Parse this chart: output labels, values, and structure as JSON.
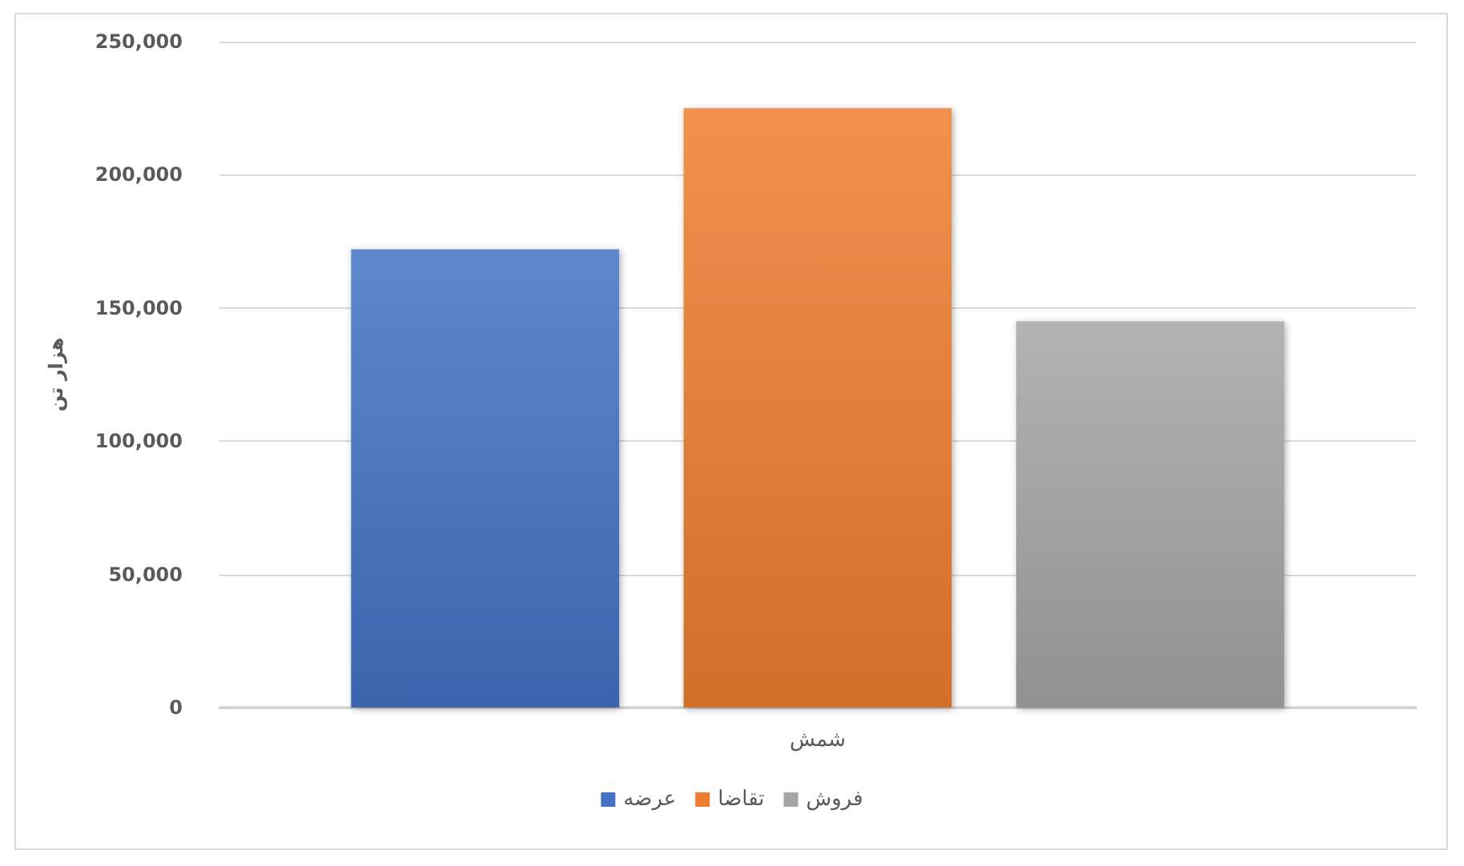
{
  "chart_data": {
    "type": "bar",
    "ylabel": "هزار تن",
    "categories": [
      "شمش"
    ],
    "series": [
      {
        "name": "عرضه",
        "color": "#4472c4",
        "values": [
          172000
        ]
      },
      {
        "name": "تقاضا",
        "color": "#ed7d31",
        "values": [
          225000
        ]
      },
      {
        "name": "فروش",
        "color": "#a5a5a5",
        "values": [
          145000
        ]
      }
    ],
    "ylim": [
      0,
      250000
    ],
    "yticks": [
      0,
      {
        "value": 50000,
        "label": "50,000"
      },
      {
        "value": 100000,
        "label": "100,000"
      },
      {
        "value": 150000,
        "label": "150,000"
      },
      {
        "value": 200000,
        "label": "200,000"
      },
      {
        "value": 250000,
        "label": "250,000"
      }
    ],
    "grid": "y",
    "legend": "bottom"
  }
}
